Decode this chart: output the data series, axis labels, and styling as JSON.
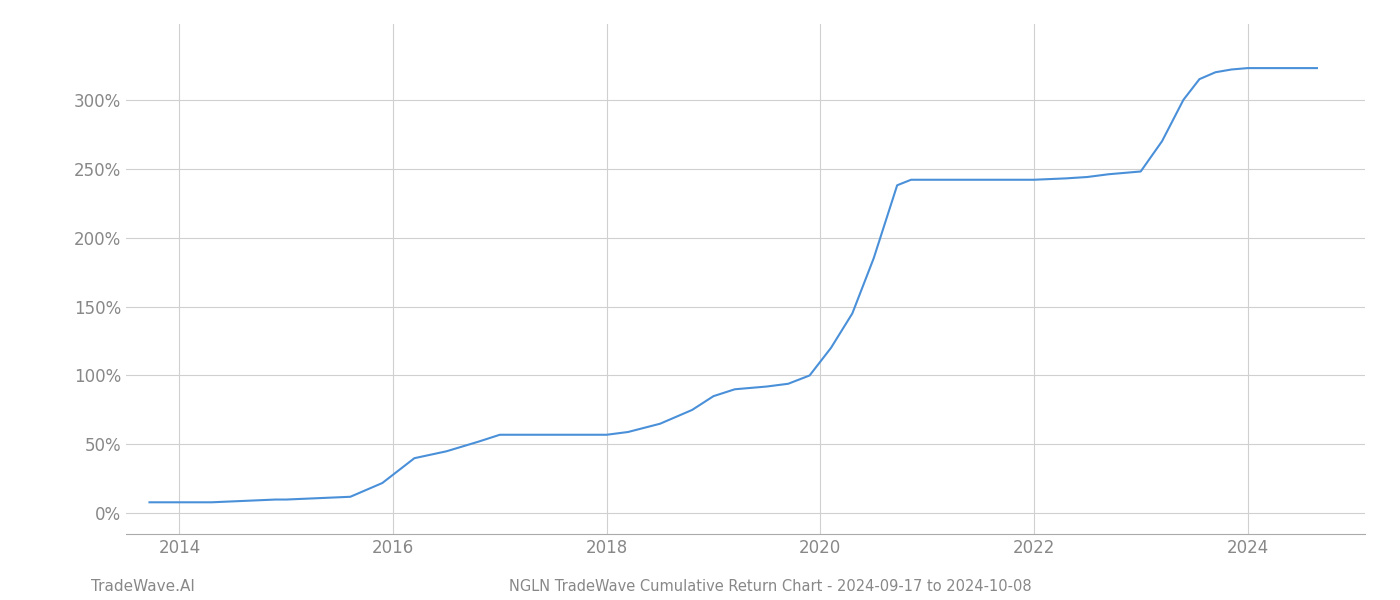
{
  "title": "NGLN TradeWave Cumulative Return Chart - 2024-09-17 to 2024-10-08",
  "watermark": "TradeWave.AI",
  "line_color": "#4a90d9",
  "background_color": "#ffffff",
  "grid_color": "#d0d0d0",
  "x_values": [
    2013.72,
    2014.0,
    2014.3,
    2014.6,
    2014.9,
    2015.0,
    2015.3,
    2015.6,
    2015.9,
    2016.2,
    2016.5,
    2016.8,
    2017.0,
    2017.3,
    2017.6,
    2017.85,
    2018.0,
    2018.2,
    2018.5,
    2018.8,
    2019.0,
    2019.2,
    2019.5,
    2019.7,
    2019.9,
    2020.1,
    2020.3,
    2020.5,
    2020.72,
    2020.85,
    2021.0,
    2021.15,
    2021.3,
    2021.6,
    2021.8,
    2022.0,
    2022.3,
    2022.5,
    2022.7,
    2023.0,
    2023.2,
    2023.4,
    2023.55,
    2023.7,
    2023.85,
    2024.0,
    2024.3,
    2024.65
  ],
  "y_values": [
    8,
    8,
    8,
    9,
    10,
    10,
    11,
    12,
    22,
    40,
    45,
    52,
    57,
    57,
    57,
    57,
    57,
    59,
    65,
    75,
    85,
    90,
    92,
    94,
    100,
    120,
    145,
    185,
    238,
    242,
    242,
    242,
    242,
    242,
    242,
    242,
    243,
    244,
    246,
    248,
    270,
    300,
    315,
    320,
    322,
    323,
    323,
    323
  ],
  "xlim": [
    2013.5,
    2025.1
  ],
  "ylim": [
    -15,
    355
  ],
  "yticks": [
    0,
    50,
    100,
    150,
    200,
    250,
    300
  ],
  "xticks": [
    2014,
    2016,
    2018,
    2020,
    2022,
    2024
  ],
  "line_width": 1.5,
  "title_fontsize": 10.5,
  "tick_fontsize": 12,
  "watermark_fontsize": 11
}
